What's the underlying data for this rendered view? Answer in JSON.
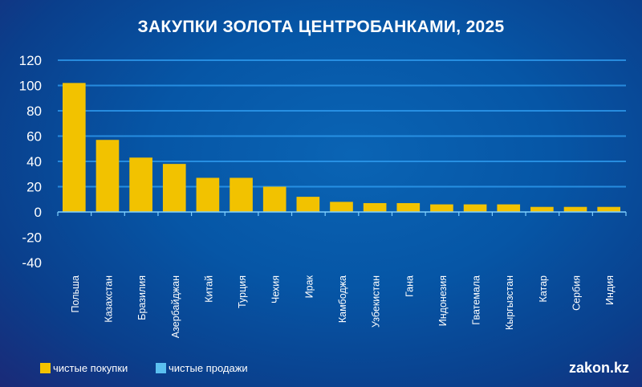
{
  "chart_data": {
    "type": "bar",
    "title": "ЗАКУПКИ ЗОЛОТА ЦЕНТРОБАНКАМИ, 2025",
    "categories": [
      "Польша",
      "Казахстан",
      "Бразилия",
      "Азербайджан",
      "Китай",
      "Турция",
      "Чехия",
      "Ирак",
      "Камбоджа",
      "Узбекистан",
      "Гана",
      "Индонезия",
      "Гватемала",
      "Кыргызстан",
      "Катар",
      "Сербия",
      "Индия"
    ],
    "series": [
      {
        "name": "чистые покупки",
        "color": "#f2c200",
        "values": [
          102,
          57,
          43,
          38,
          27,
          27,
          20,
          12,
          8,
          7,
          7,
          6,
          6,
          6,
          4,
          4,
          4
        ]
      },
      {
        "name": "чистые продажи",
        "color": "#5bc0f0",
        "values": [
          0,
          0,
          0,
          0,
          0,
          0,
          0,
          0,
          0,
          0,
          0,
          0,
          0,
          0,
          0,
          0,
          0
        ]
      }
    ],
    "ylim": [
      -40,
      120
    ],
    "yticks": [
      120,
      100,
      80,
      60,
      40,
      20,
      0,
      -20,
      -40
    ],
    "grid": true,
    "legend_placement": "bottom-left",
    "xlabel": "",
    "ylabel": ""
  },
  "brand": "zakon.kz"
}
